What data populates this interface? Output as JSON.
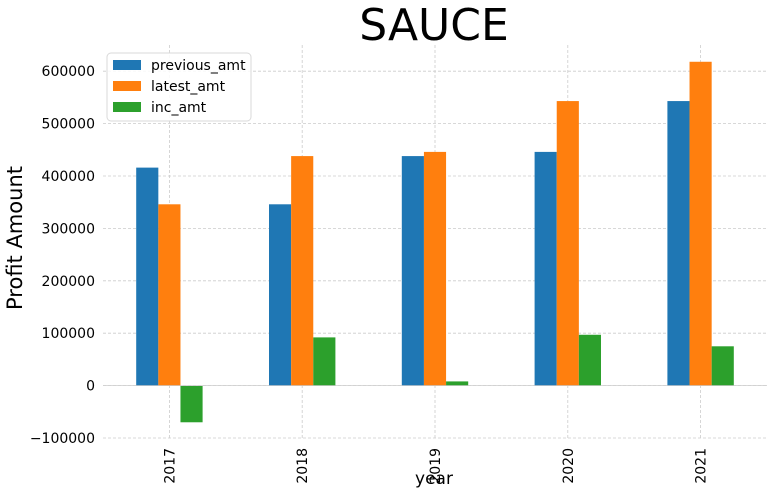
{
  "chart_data": {
    "type": "bar",
    "title": "SAUCE",
    "xlabel": "year",
    "ylabel": "Profit Amount",
    "categories": [
      "2017",
      "2018",
      "2019",
      "2020",
      "2021"
    ],
    "series": [
      {
        "name": "previous_amt",
        "color": "#1f77b4",
        "values": [
          416000,
          346000,
          438000,
          446000,
          543000
        ]
      },
      {
        "name": "latest_amt",
        "color": "#ff7f0e",
        "values": [
          346000,
          438000,
          446000,
          543000,
          618000
        ]
      },
      {
        "name": "inc_amt",
        "color": "#2ca02c",
        "values": [
          -70000,
          92000,
          8000,
          97000,
          75000
        ]
      }
    ],
    "ylim": [
      -100000,
      650000
    ],
    "yticks": [
      -100000,
      0,
      100000,
      200000,
      300000,
      400000,
      500000,
      600000
    ],
    "ytick_labels": [
      "−100000",
      "0",
      "100000",
      "200000",
      "300000",
      "400000",
      "500000",
      "600000"
    ],
    "grid": true,
    "legend_position": "top-left"
  }
}
